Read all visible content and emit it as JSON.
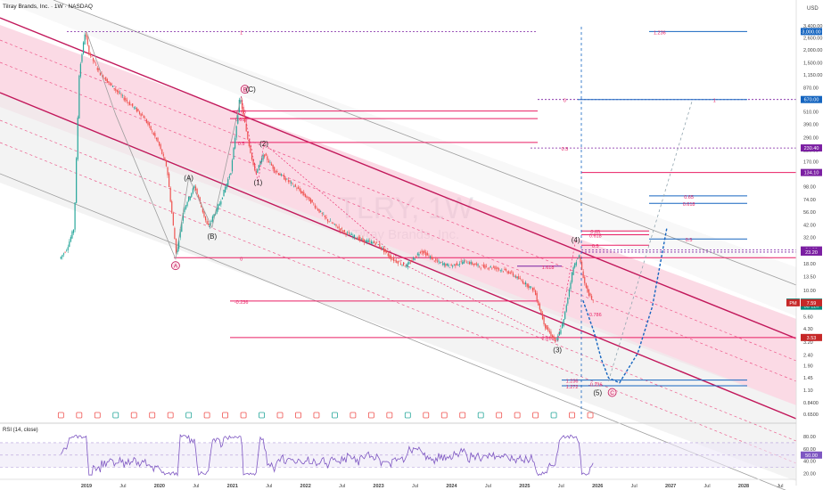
{
  "header": {
    "title": "Tilray Brands, Inc. · 1W · NASDAQ",
    "currency": "USD",
    "watermark_symbol": "TLRY, 1W",
    "watermark_name": "Tilray Brands, Inc."
  },
  "colors": {
    "channel": "#c2185b",
    "channel_fill": "#f8bbd0",
    "fib_red": "#e91e63",
    "fib_blue": "#1565c0",
    "fib_purple": "#7b1fa2",
    "dashed_blue": "#1565c0",
    "candle_up": "#26a69a",
    "candle_down": "#ef5350",
    "rsi_line": "#7e57c2"
  },
  "chart_data": {
    "type": "candlestick",
    "scale": "log",
    "price_axis_ticks": [
      "3,400.00",
      "2,600.00",
      "2,000.00",
      "1,500.00",
      "1,150.00",
      "870.00",
      "670.00",
      "510.00",
      "390.00",
      "290.00",
      "220.00",
      "170.00",
      "130.00",
      "98.00",
      "74.00",
      "56.00",
      "42.00",
      "32.00",
      "24.00",
      "18.00",
      "13.50",
      "10.00",
      "7.50",
      "5.60",
      "4.30",
      "3.20",
      "2.40",
      "1.90",
      "1.45",
      "1.10",
      "0.8400",
      "0.6500"
    ],
    "price_values": [
      3400,
      2600,
      2000,
      1500,
      1150,
      870,
      670,
      510,
      390,
      290,
      220,
      170,
      130,
      98,
      74,
      56,
      42,
      32,
      24,
      18,
      13.5,
      10,
      7.5,
      5.6,
      4.3,
      3.2,
      2.4,
      1.9,
      1.45,
      1.1,
      0.84,
      0.65
    ],
    "time_axis_labels": [
      "2019",
      "Jul",
      "2020",
      "Jul",
      "2021",
      "Jul",
      "2022",
      "Jul",
      "2023",
      "Jul",
      "2024",
      "Jul",
      "2025",
      "Jul",
      "2026",
      "Jul",
      "2027",
      "Jul",
      "2028",
      "Jul"
    ],
    "time_axis_years": [
      2019,
      2019.5,
      2020,
      2020.5,
      2021,
      2021.5,
      2022,
      2022.5,
      2023,
      2023.5,
      2024,
      2024.5,
      2025,
      2025.5,
      2026,
      2026.5,
      2027,
      2027.5,
      2028,
      2028.5
    ],
    "price_tags": [
      {
        "label": "3,000.00",
        "value": 3000,
        "color": "#1565c0"
      },
      {
        "label": "670.00",
        "value": 670,
        "color": "#1565c0"
      },
      {
        "label": "230.40",
        "value": 230.4,
        "color": "#7b1fa2"
      },
      {
        "label": "134.10",
        "value": 134.1,
        "color": "#7b1fa2"
      },
      {
        "label": "24.30",
        "value": 24.3,
        "color": "#7b1fa2"
      },
      {
        "label": "23.20",
        "value": 23.2,
        "color": "#7b1fa2"
      },
      {
        "label": "TLRY",
        "value": 7.7,
        "color": "#00897b"
      },
      {
        "label": "7.70",
        "value": 7.7,
        "color": "#00897b"
      },
      {
        "label": "3d 12h",
        "value": 7.05,
        "color": "#00897b"
      },
      {
        "label": "PM",
        "value": 7.59,
        "color": "#c62828"
      },
      {
        "label": "7.59",
        "value": 7.59,
        "color": "#c62828"
      },
      {
        "label": "3.53",
        "value": 3.53,
        "color": "#c62828"
      }
    ],
    "wave_labels": [
      {
        "text": "B",
        "circled": true,
        "year": 2021.17,
        "price": 840,
        "color": "#c2185b"
      },
      {
        "text": "(C)",
        "year": 2021.25,
        "price": 840
      },
      {
        "text": "(2)",
        "year": 2021.43,
        "price": 255
      },
      {
        "text": "(1)",
        "year": 2021.35,
        "price": 108
      },
      {
        "text": "(A)",
        "year": 2020.4,
        "price": 120
      },
      {
        "text": "(B)",
        "year": 2020.72,
        "price": 33
      },
      {
        "text": "A",
        "circled": true,
        "year": 2020.22,
        "price": 17.2,
        "color": "#c2185b"
      },
      {
        "text": "(4)",
        "year": 2025.7,
        "price": 30.5
      },
      {
        "text": "(3)",
        "year": 2025.45,
        "price": 2.7
      },
      {
        "text": "(5)",
        "year": 2026.0,
        "price": 1.05
      },
      {
        "text": "C",
        "circled": true,
        "year": 2026.2,
        "price": 1.05,
        "color": "#c2185b"
      }
    ],
    "fib_levels": [
      {
        "text": "1",
        "year": 2021.12,
        "price": 3000
      },
      {
        "text": "0.65",
        "year": 2021.12,
        "price": 520
      },
      {
        "text": "0.618",
        "year": 2021.12,
        "price": 440
      },
      {
        "text": "0.5",
        "year": 2021.12,
        "price": 260
      },
      {
        "text": "0",
        "year": 2021.12,
        "price": 20.5
      },
      {
        "text": "-0.236",
        "year": 2021.12,
        "price": 7.9
      },
      {
        "text": "0",
        "year": 2025.55,
        "price": 670
      },
      {
        "text": "0.5",
        "year": 2025.55,
        "price": 230
      },
      {
        "text": "1.618",
        "year": 2025.32,
        "price": 17
      },
      {
        "text": "0.786",
        "year": 2025.97,
        "price": 6.0
      },
      {
        "text": "2.618",
        "year": 2025.32,
        "price": 3.55
      },
      {
        "text": "1.236",
        "year": 2025.65,
        "price": 1.38
      },
      {
        "text": "1.272",
        "year": 2025.65,
        "price": 1.22
      },
      {
        "text": "-0.236",
        "year": 2025.97,
        "price": 1.28
      },
      {
        "text": "0.65",
        "year": 2025.97,
        "price": 37
      },
      {
        "text": "0.618",
        "year": 2025.97,
        "price": 34
      },
      {
        "text": "0.5",
        "year": 2025.97,
        "price": 27
      },
      {
        "text": "1.236",
        "year": 2026.85,
        "price": 3000
      },
      {
        "text": "1",
        "year": 2027.6,
        "price": 670
      },
      {
        "text": "0.65",
        "year": 2027.25,
        "price": 80
      },
      {
        "text": "0.618",
        "year": 2027.25,
        "price": 68
      },
      {
        "text": "0.5",
        "year": 2027.25,
        "price": 31
      }
    ]
  },
  "rsi": {
    "label": "RSI (14, close)",
    "ticks": [
      "80.00",
      "60.00",
      "40.00",
      "20.00"
    ],
    "tick_values": [
      80,
      60,
      40,
      20
    ],
    "current_label": "50.00"
  }
}
